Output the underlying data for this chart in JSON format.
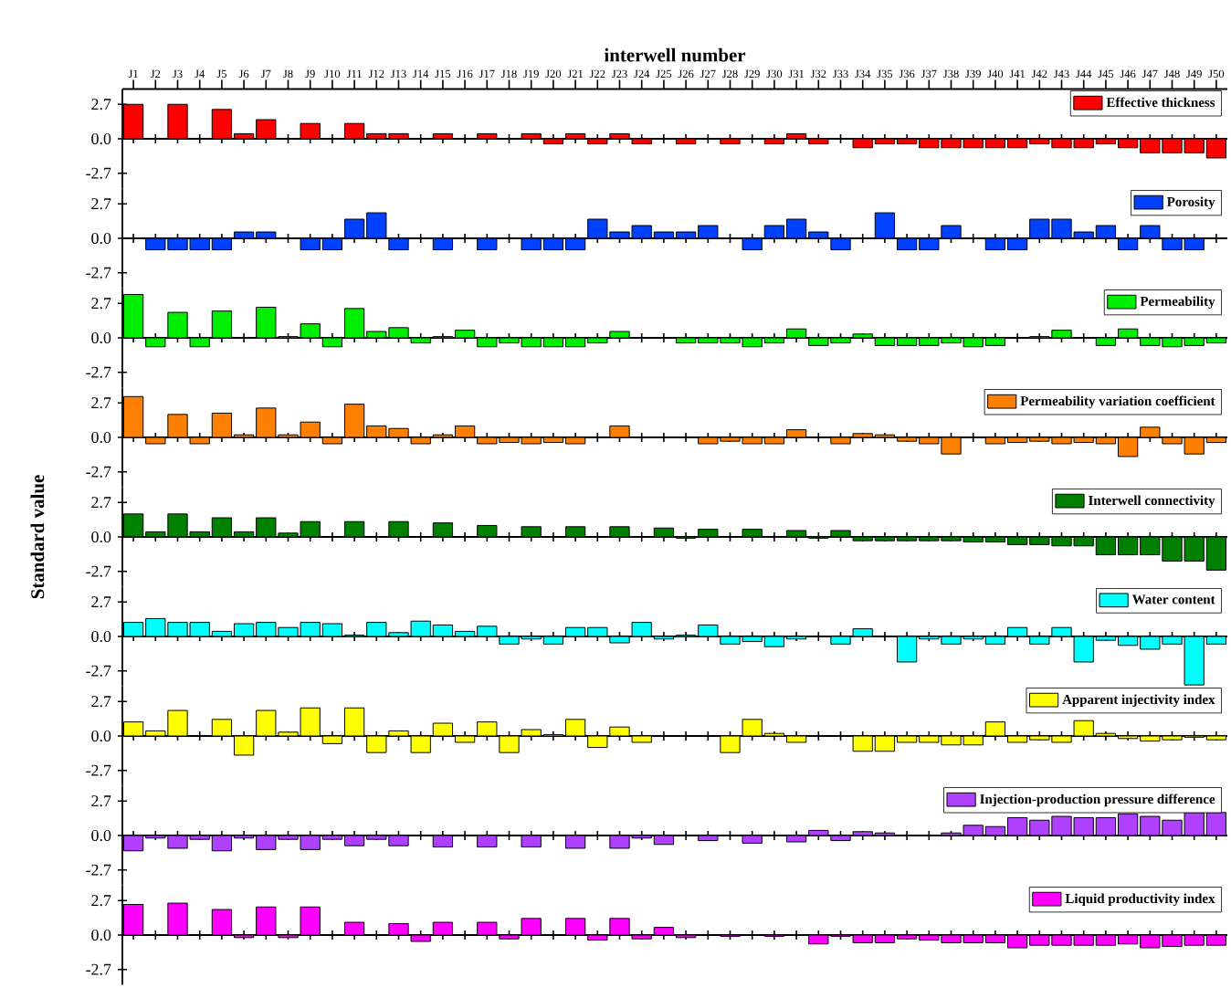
{
  "chart_data": [
    {
      "type": "bar",
      "xlabel": "interwell number",
      "categories": [
        "J1",
        "J2",
        "J3",
        "J4",
        "J5",
        "J6",
        "J7",
        "J8",
        "J9",
        "J10",
        "J11",
        "J12",
        "J13",
        "J14",
        "J15",
        "J16",
        "J17",
        "J18",
        "J19",
        "J20",
        "J21",
        "J22",
        "J23",
        "J24",
        "J25",
        "J26",
        "J27",
        "J28",
        "J29",
        "J30",
        "J31",
        "J32",
        "J33",
        "J34",
        "J35",
        "J36",
        "J37",
        "J38",
        "J39",
        "J40",
        "J41",
        "J42",
        "J43",
        "J44",
        "J45",
        "J46",
        "J47",
        "J48",
        "J49",
        "J50"
      ],
      "series": [
        {
          "name": "Effective thickness",
          "color": "#ff0000",
          "values": [
            2.7,
            null,
            2.7,
            null,
            2.3,
            0.4,
            1.5,
            null,
            1.2,
            null,
            1.2,
            0.4,
            0.4,
            null,
            0.4,
            null,
            0.4,
            null,
            0.4,
            -0.4,
            0.4,
            -0.4,
            0.4,
            -0.4,
            null,
            -0.4,
            null,
            -0.4,
            null,
            -0.4,
            0.4,
            -0.4,
            null,
            -0.7,
            -0.4,
            -0.4,
            -0.7,
            -0.7,
            -0.7,
            -0.7,
            -0.7,
            -0.4,
            -0.7,
            -0.7,
            -0.4,
            -0.7,
            -1.1,
            -1.1,
            -1.1,
            -1.5
          ]
        }
      ],
      "ylim": [
        -3.9,
        3.9
      ],
      "yticks": [
        {
          "value": -2.7,
          "label": "-2.7"
        },
        {
          "value": 0,
          "label": "0.0"
        },
        {
          "value": 2.7,
          "label": "2.7"
        }
      ],
      "legend": "top right"
    },
    {
      "type": "bar",
      "categories": [
        null,
        null,
        null,
        null,
        null,
        null,
        null,
        null,
        null,
        null,
        null,
        null,
        null,
        null,
        null,
        null,
        null,
        null,
        null,
        null,
        null,
        null,
        null,
        null,
        null,
        null,
        null,
        null,
        null,
        null,
        null,
        null,
        null,
        null,
        null,
        null,
        null,
        null,
        null,
        null,
        null,
        null,
        null,
        null,
        null,
        null,
        null,
        null,
        null,
        null
      ],
      "series": [
        {
          "name": "Porosity",
          "color": "#0040ff",
          "values": [
            null,
            -0.9,
            -0.9,
            -0.9,
            -0.9,
            0.5,
            0.5,
            null,
            -0.9,
            -0.9,
            1.5,
            2.0,
            -0.9,
            null,
            -0.9,
            null,
            -0.9,
            null,
            -0.9,
            -0.9,
            -0.9,
            1.5,
            0.5,
            1.0,
            0.5,
            0.5,
            1.0,
            null,
            -0.9,
            1.0,
            1.5,
            0.5,
            -0.9,
            null,
            2.0,
            -0.9,
            -0.9,
            1.0,
            null,
            -0.9,
            -0.9,
            1.5,
            1.5,
            0.5,
            1.0,
            -0.9,
            1.0,
            -0.9,
            -0.9,
            null
          ]
        }
      ],
      "ylim": [
        -3.9,
        3.9
      ],
      "yticks": [
        {
          "value": -2.7,
          "label": "-2.7"
        },
        {
          "value": 0,
          "label": "0.0"
        },
        {
          "value": 2.7,
          "label": "2.7"
        }
      ],
      "legend": "top right",
      "tick_labels": "y"
    },
    {
      "type": "bar",
      "categories": [
        null,
        null,
        null,
        null,
        null,
        null,
        null,
        null,
        null,
        null,
        null,
        null,
        null,
        null,
        null,
        null,
        null,
        null,
        null,
        null,
        null,
        null,
        null,
        null,
        null,
        null,
        null,
        null,
        null,
        null,
        null,
        null,
        null,
        null,
        null,
        null,
        null,
        null,
        null,
        null,
        null,
        null,
        null,
        null,
        null,
        null,
        null,
        null,
        null,
        null
      ],
      "series": [
        {
          "name": "Permeability",
          "color": "#00ee00",
          "values": [
            3.4,
            -0.7,
            2.0,
            -0.7,
            2.1,
            null,
            2.4,
            0.1,
            1.1,
            -0.7,
            2.3,
            0.5,
            0.8,
            -0.4,
            0.1,
            0.6,
            -0.7,
            -0.4,
            -0.7,
            -0.7,
            -0.7,
            -0.4,
            0.5,
            null,
            null,
            -0.4,
            -0.4,
            -0.4,
            -0.7,
            -0.4,
            0.7,
            -0.6,
            -0.4,
            0.3,
            -0.6,
            -0.6,
            -0.6,
            -0.4,
            -0.7,
            -0.6,
            null,
            0.1,
            0.6,
            null,
            -0.6,
            0.7,
            -0.6,
            -0.7,
            -0.6,
            -0.4
          ]
        }
      ],
      "ylim": [
        -3.9,
        3.9
      ],
      "yticks": [
        {
          "value": -2.7,
          "label": "-2.7"
        },
        {
          "value": 0,
          "label": "0.0"
        },
        {
          "value": 2.7,
          "label": "2.7"
        }
      ],
      "legend": "top right",
      "tick_labels": "y"
    },
    {
      "type": "bar",
      "categories": [
        null,
        null,
        null,
        null,
        null,
        null,
        null,
        null,
        null,
        null,
        null,
        null,
        null,
        null,
        null,
        null,
        null,
        null,
        null,
        null,
        null,
        null,
        null,
        null,
        null,
        null,
        null,
        null,
        null,
        null,
        null,
        null,
        null,
        null,
        null,
        null,
        null,
        null,
        null,
        null,
        null,
        null,
        null,
        null,
        null,
        null,
        null,
        null,
        null,
        null
      ],
      "series": [
        {
          "name": "Permeability variation coefficient",
          "color": "#ff8000",
          "values": [
            3.2,
            -0.5,
            1.8,
            -0.5,
            1.9,
            0.2,
            2.3,
            0.2,
            1.2,
            -0.5,
            2.6,
            0.9,
            0.7,
            -0.5,
            0.2,
            0.9,
            -0.5,
            -0.4,
            -0.5,
            -0.4,
            -0.5,
            null,
            0.9,
            null,
            null,
            null,
            -0.5,
            -0.3,
            -0.5,
            -0.5,
            0.6,
            null,
            -0.5,
            0.3,
            0.2,
            -0.3,
            -0.5,
            -1.3,
            null,
            -0.5,
            -0.4,
            -0.3,
            -0.5,
            -0.4,
            -0.5,
            -1.5,
            0.8,
            -0.5,
            -1.3,
            -0.4
          ]
        }
      ],
      "ylim": [
        -3.9,
        3.9
      ],
      "yticks": [
        {
          "value": -2.7,
          "label": "-2.7"
        },
        {
          "value": 0,
          "label": "0.0"
        },
        {
          "value": 2.7,
          "label": "2.7"
        }
      ],
      "legend": "top right",
      "tick_labels": "y"
    },
    {
      "type": "bar",
      "ylabel": "Standard value",
      "categories": [
        null,
        null,
        null,
        null,
        null,
        null,
        null,
        null,
        null,
        null,
        null,
        null,
        null,
        null,
        null,
        null,
        null,
        null,
        null,
        null,
        null,
        null,
        null,
        null,
        null,
        null,
        null,
        null,
        null,
        null,
        null,
        null,
        null,
        null,
        null,
        null,
        null,
        null,
        null,
        null,
        null,
        null,
        null,
        null,
        null,
        null,
        null,
        null,
        null,
        null
      ],
      "series": [
        {
          "name": "Interwell connectivity",
          "color": "#008000",
          "values": [
            1.8,
            0.4,
            1.8,
            0.4,
            1.5,
            0.4,
            1.5,
            0.3,
            1.2,
            null,
            1.2,
            null,
            1.2,
            null,
            1.1,
            null,
            0.9,
            null,
            0.8,
            null,
            0.8,
            null,
            0.8,
            null,
            0.7,
            -0.1,
            0.6,
            null,
            0.6,
            null,
            0.5,
            -0.1,
            0.5,
            -0.3,
            -0.3,
            -0.3,
            -0.3,
            -0.3,
            -0.4,
            -0.4,
            -0.6,
            -0.6,
            -0.7,
            -0.7,
            -1.4,
            -1.4,
            -1.4,
            -1.9,
            -1.9,
            -2.6
          ]
        }
      ],
      "ylim": [
        -3.9,
        3.9
      ],
      "yticks": [
        {
          "value": -2.7,
          "label": "-2.7"
        },
        {
          "value": 0,
          "label": "0.0"
        },
        {
          "value": 2.7,
          "label": "2.7"
        }
      ],
      "legend": "top right",
      "tick_labels": "y"
    },
    {
      "type": "bar",
      "categories": [
        null,
        null,
        null,
        null,
        null,
        null,
        null,
        null,
        null,
        null,
        null,
        null,
        null,
        null,
        null,
        null,
        null,
        null,
        null,
        null,
        null,
        null,
        null,
        null,
        null,
        null,
        null,
        null,
        null,
        null,
        null,
        null,
        null,
        null,
        null,
        null,
        null,
        null,
        null,
        null,
        null,
        null,
        null,
        null,
        null,
        null,
        null,
        null,
        null,
        null
      ],
      "series": [
        {
          "name": "Water content",
          "color": "#00ffff",
          "values": [
            1.1,
            1.4,
            1.1,
            1.1,
            0.4,
            1.0,
            1.1,
            0.7,
            1.1,
            1.0,
            0.1,
            1.1,
            0.3,
            1.2,
            0.9,
            0.4,
            0.8,
            -0.6,
            -0.2,
            -0.6,
            0.7,
            0.7,
            -0.5,
            1.1,
            -0.2,
            0.1,
            0.9,
            -0.6,
            -0.4,
            -0.8,
            -0.2,
            null,
            -0.6,
            0.6,
            null,
            -2.0,
            -0.2,
            -0.6,
            -0.2,
            -0.6,
            0.7,
            -0.6,
            0.7,
            -2.0,
            -0.3,
            -0.7,
            -1.0,
            -0.6,
            -3.8,
            -0.6
          ]
        }
      ],
      "ylim": [
        -3.9,
        3.9
      ],
      "yticks": [
        {
          "value": -2.7,
          "label": "-2.7"
        },
        {
          "value": 0,
          "label": "0.0"
        },
        {
          "value": 2.7,
          "label": "2.7"
        }
      ],
      "legend": "top right",
      "tick_labels": "y"
    },
    {
      "type": "bar",
      "categories": [
        null,
        null,
        null,
        null,
        null,
        null,
        null,
        null,
        null,
        null,
        null,
        null,
        null,
        null,
        null,
        null,
        null,
        null,
        null,
        null,
        null,
        null,
        null,
        null,
        null,
        null,
        null,
        null,
        null,
        null,
        null,
        null,
        null,
        null,
        null,
        null,
        null,
        null,
        null,
        null,
        null,
        null,
        null,
        null,
        null,
        null,
        null,
        null,
        null,
        null
      ],
      "series": [
        {
          "name": "Apparent injectivity index",
          "color": "#ffff00",
          "values": [
            1.1,
            0.4,
            2.0,
            null,
            1.3,
            -1.5,
            2.0,
            0.3,
            2.2,
            -0.6,
            2.2,
            -1.3,
            0.4,
            -1.3,
            1.0,
            -0.5,
            1.1,
            -1.3,
            0.5,
            0.1,
            1.3,
            -0.9,
            0.7,
            -0.5,
            null,
            null,
            null,
            -1.3,
            1.3,
            0.2,
            -0.5,
            null,
            null,
            -1.2,
            -1.2,
            -0.5,
            -0.5,
            -0.7,
            -0.7,
            1.1,
            -0.5,
            -0.3,
            -0.5,
            1.2,
            0.2,
            -0.2,
            -0.4,
            -0.3,
            -0.1,
            -0.3
          ]
        }
      ],
      "ylim": [
        -3.9,
        3.9
      ],
      "yticks": [
        {
          "value": -2.7,
          "label": "-2.7"
        },
        {
          "value": 0,
          "label": "0.0"
        },
        {
          "value": 2.7,
          "label": "2.7"
        }
      ],
      "legend": "top right",
      "tick_labels": "y"
    },
    {
      "type": "bar",
      "categories": [
        null,
        null,
        null,
        null,
        null,
        null,
        null,
        null,
        null,
        null,
        null,
        null,
        null,
        null,
        null,
        null,
        null,
        null,
        null,
        null,
        null,
        null,
        null,
        null,
        null,
        null,
        null,
        null,
        null,
        null,
        null,
        null,
        null,
        null,
        null,
        null,
        null,
        null,
        null,
        null,
        null,
        null,
        null,
        null,
        null,
        null,
        null,
        null,
        null,
        null
      ],
      "series": [
        {
          "name": "Injection-production pressure difference",
          "color": "#b040ff",
          "values": [
            -1.2,
            -0.2,
            -1.0,
            -0.3,
            -1.2,
            -0.2,
            -1.1,
            -0.3,
            -1.1,
            -0.3,
            -0.8,
            -0.3,
            -0.8,
            null,
            -0.9,
            null,
            -0.9,
            null,
            -0.9,
            null,
            -1.0,
            null,
            -1.0,
            -0.2,
            -0.7,
            null,
            -0.4,
            null,
            -0.6,
            null,
            -0.5,
            0.4,
            -0.4,
            0.3,
            0.2,
            null,
            null,
            0.2,
            0.8,
            0.7,
            1.4,
            1.2,
            1.5,
            1.4,
            1.4,
            1.7,
            1.5,
            1.2,
            1.8,
            1.8
          ]
        }
      ],
      "ylim": [
        -3.9,
        3.9
      ],
      "yticks": [
        {
          "value": -2.7,
          "label": "-2.7"
        },
        {
          "value": 0,
          "label": "0.0"
        },
        {
          "value": 2.7,
          "label": "2.7"
        }
      ],
      "legend": "top right",
      "tick_labels": "y"
    },
    {
      "type": "bar",
      "categories": [
        null,
        null,
        null,
        null,
        null,
        null,
        null,
        null,
        null,
        null,
        null,
        null,
        null,
        null,
        null,
        null,
        null,
        null,
        null,
        null,
        null,
        null,
        null,
        null,
        null,
        null,
        null,
        null,
        null,
        null,
        null,
        null,
        null,
        null,
        null,
        null,
        null,
        null,
        null,
        null,
        null,
        null,
        null,
        null,
        null,
        null,
        null,
        null,
        null,
        null
      ],
      "series": [
        {
          "name": "Liquid productivity index",
          "color": "#ff00ff",
          "values": [
            2.4,
            null,
            2.5,
            null,
            2.0,
            -0.2,
            2.2,
            -0.2,
            2.2,
            null,
            1.0,
            null,
            0.9,
            -0.5,
            1.0,
            null,
            1.0,
            -0.3,
            1.3,
            null,
            1.3,
            -0.4,
            1.3,
            -0.3,
            0.6,
            -0.2,
            null,
            -0.1,
            null,
            -0.1,
            null,
            -0.7,
            -0.1,
            -0.6,
            -0.6,
            -0.3,
            -0.4,
            -0.6,
            -0.6,
            -0.6,
            -1.0,
            -0.8,
            -0.8,
            -0.8,
            -0.8,
            -0.7,
            -1.0,
            -0.9,
            -0.8,
            -0.8
          ]
        }
      ],
      "ylim": [
        -3.9,
        3.9
      ],
      "yticks": [
        {
          "value": -2.7,
          "label": "-2.7"
        },
        {
          "value": 0,
          "label": "0.0"
        },
        {
          "value": 2.7,
          "label": "2.7"
        }
      ],
      "legend": "top right",
      "tick_labels": "y"
    }
  ]
}
